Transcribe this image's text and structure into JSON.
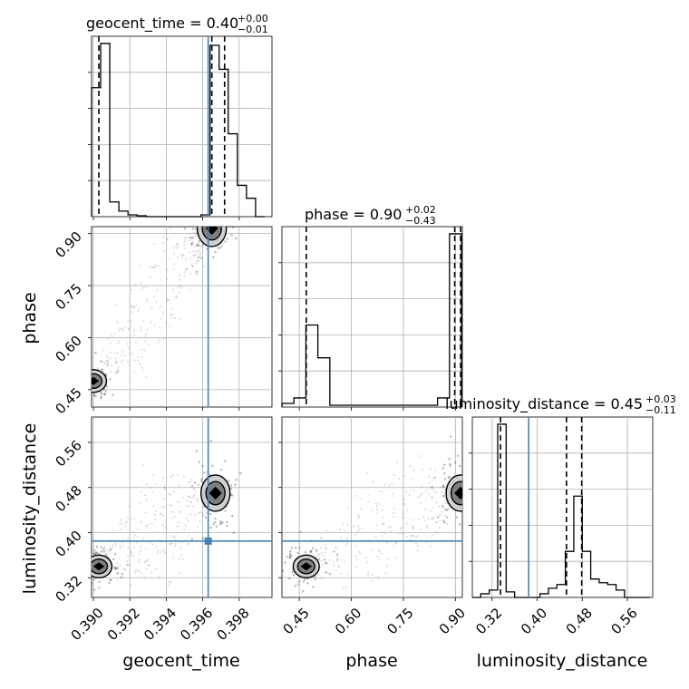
{
  "chart_data": {
    "type": "corner",
    "parameters": [
      "geocent_time",
      "phase",
      "luminosity_distance"
    ],
    "truths": {
      "geocent_time": 0.3963,
      "phase": null,
      "luminosity_distance": 0.385
    },
    "titles": [
      {
        "text": "geocent_time = 0.40",
        "sup": "+0.00",
        "sub": "−0.01"
      },
      {
        "text": "phase = 0.90",
        "sup": "+0.02",
        "sub": "−0.43"
      },
      {
        "text": "luminosity_distance = 0.45",
        "sup": "+0.03",
        "sub": "−0.11"
      }
    ],
    "xlabels": [
      "geocent_time",
      "phase",
      "luminosity_distance"
    ],
    "ylabels": [
      "phase",
      "luminosity_distance"
    ],
    "ticks": {
      "geocent_time": [
        "0.390",
        "0.392",
        "0.394",
        "0.396",
        "0.398"
      ],
      "phase": [
        "0.45",
        "0.60",
        "0.75",
        "0.90"
      ],
      "luminosity_distance": [
        "0.32",
        "0.40",
        "0.48",
        "0.56"
      ]
    },
    "ranges": {
      "geocent_time": [
        0.3899,
        0.3998
      ],
      "phase": [
        0.4,
        0.92
      ],
      "luminosity_distance": [
        0.285,
        0.605
      ]
    },
    "histograms": {
      "geocent_time": {
        "edges": [
          0.3899,
          0.3904,
          0.3909,
          0.3914,
          0.3919,
          0.3924,
          0.3929,
          0.3934,
          0.3939,
          0.3944,
          0.3949,
          0.3954,
          0.3959,
          0.3964,
          0.3969,
          0.3974,
          0.3979,
          0.3984,
          0.3989,
          0.3994
        ],
        "counts": [
          0.7,
          0.94,
          0.08,
          0.03,
          0.01,
          0.005,
          0.0,
          0.0,
          0.0,
          0.0,
          0.0,
          0.0,
          0.01,
          0.93,
          0.8,
          0.45,
          0.17,
          0.1,
          0.0
        ],
        "quantiles": [
          0.3903,
          0.3965,
          0.3972
        ]
      },
      "phase": {
        "edges": [
          0.4,
          0.4345,
          0.469,
          0.5035,
          0.538,
          0.5725,
          0.607,
          0.6415,
          0.676,
          0.7105,
          0.745,
          0.7795,
          0.814,
          0.8485,
          0.883,
          0.9175
        ],
        "counts": [
          0.02,
          0.05,
          0.45,
          0.27,
          0.01,
          0.01,
          0.01,
          0.01,
          0.01,
          0.01,
          0.01,
          0.01,
          0.01,
          0.05,
          0.95
        ],
        "quantiles": [
          0.47,
          0.898,
          0.915
        ]
      },
      "luminosity_distance": {
        "edges": [
          0.285,
          0.3,
          0.315,
          0.33,
          0.345,
          0.36,
          0.375,
          0.39,
          0.405,
          0.42,
          0.435,
          0.45,
          0.465,
          0.48,
          0.495,
          0.51,
          0.525,
          0.54,
          0.555,
          0.57,
          0.585,
          0.6
        ],
        "counts": [
          0.0,
          0.02,
          0.04,
          0.94,
          0.03,
          0.0,
          0.0,
          0.0,
          0.02,
          0.05,
          0.07,
          0.25,
          0.55,
          0.25,
          0.1,
          0.08,
          0.07,
          0.04,
          0.0,
          0.0,
          0.0
        ],
        "quantiles": [
          0.335,
          0.452,
          0.479
        ]
      }
    },
    "density_2d": [
      {
        "x": "geocent_time",
        "y": "phase",
        "modes": [
          {
            "x": 0.3965,
            "y": 0.915
          },
          {
            "x": 0.39,
            "y": 0.475
          }
        ]
      },
      {
        "x": "geocent_time",
        "y": "luminosity_distance",
        "modes": [
          {
            "x": 0.3967,
            "y": 0.47
          },
          {
            "x": 0.3903,
            "y": 0.34
          }
        ]
      },
      {
        "x": "phase",
        "y": "luminosity_distance",
        "modes": [
          {
            "x": 0.915,
            "y": 0.47
          },
          {
            "x": 0.47,
            "y": 0.34
          }
        ]
      }
    ],
    "colors": {
      "hist": "#000000",
      "truth": "#4682b4",
      "grid": "#b0b0b0",
      "density_dark": "#000000",
      "density_mid": "#7f7f7f",
      "density_light": "#d0d0d0"
    }
  }
}
